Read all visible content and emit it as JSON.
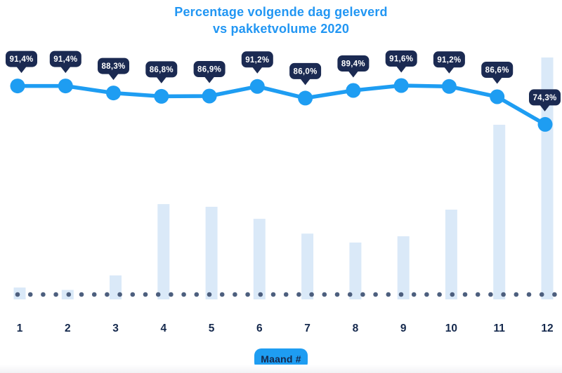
{
  "title": {
    "line1": "Percentage volgende dag geleverd",
    "line2": "vs pakketvolume 2020"
  },
  "x_axis": {
    "title_button": "Maand #",
    "labels": [
      "1",
      "2",
      "3",
      "4",
      "5",
      "6",
      "7",
      "8",
      "9",
      "10",
      "11",
      "12"
    ]
  },
  "colors": {
    "accent_blue": "#1E9DF2",
    "title_blue": "#2196F3",
    "badge_navy": "#1B2A52",
    "badge_text": "#FFFFFF",
    "bar_light_blue": "#DAE9F8",
    "dotted_line": "#4D5F7E",
    "axis_text_navy": "#15294D"
  },
  "chart_data": {
    "type": "combo",
    "title": "Percentage volgende dag geleverd vs pakketvolume 2020",
    "xlabel": "Maand #",
    "ylabel": "",
    "categories": [
      1,
      2,
      3,
      4,
      5,
      6,
      7,
      8,
      9,
      10,
      11,
      12
    ],
    "grid": false,
    "legend": "none",
    "series": [
      {
        "name": "Percentage volgende dag geleverd",
        "type": "line",
        "unit": "%",
        "values": [
          91.4,
          91.4,
          88.3,
          86.8,
          86.9,
          91.2,
          86.0,
          89.4,
          91.6,
          91.2,
          86.6,
          74.3
        ],
        "labels": [
          "91,4%",
          "91,4%",
          "88,3%",
          "86,8%",
          "86,9%",
          "91,2%",
          "86,0%",
          "89,4%",
          "91,6%",
          "91,2%",
          "86,6%",
          "74,3%"
        ]
      },
      {
        "name": "Pakketvolume",
        "type": "bar",
        "unit": "relative, max month = 100 (no value axis shown)",
        "values": [
          4.9,
          3.9,
          9.9,
          39.4,
          38.3,
          33.3,
          27.2,
          23.5,
          26.1,
          37.1,
          72.2,
          100
        ]
      }
    ],
    "baseline_style": "dotted"
  }
}
